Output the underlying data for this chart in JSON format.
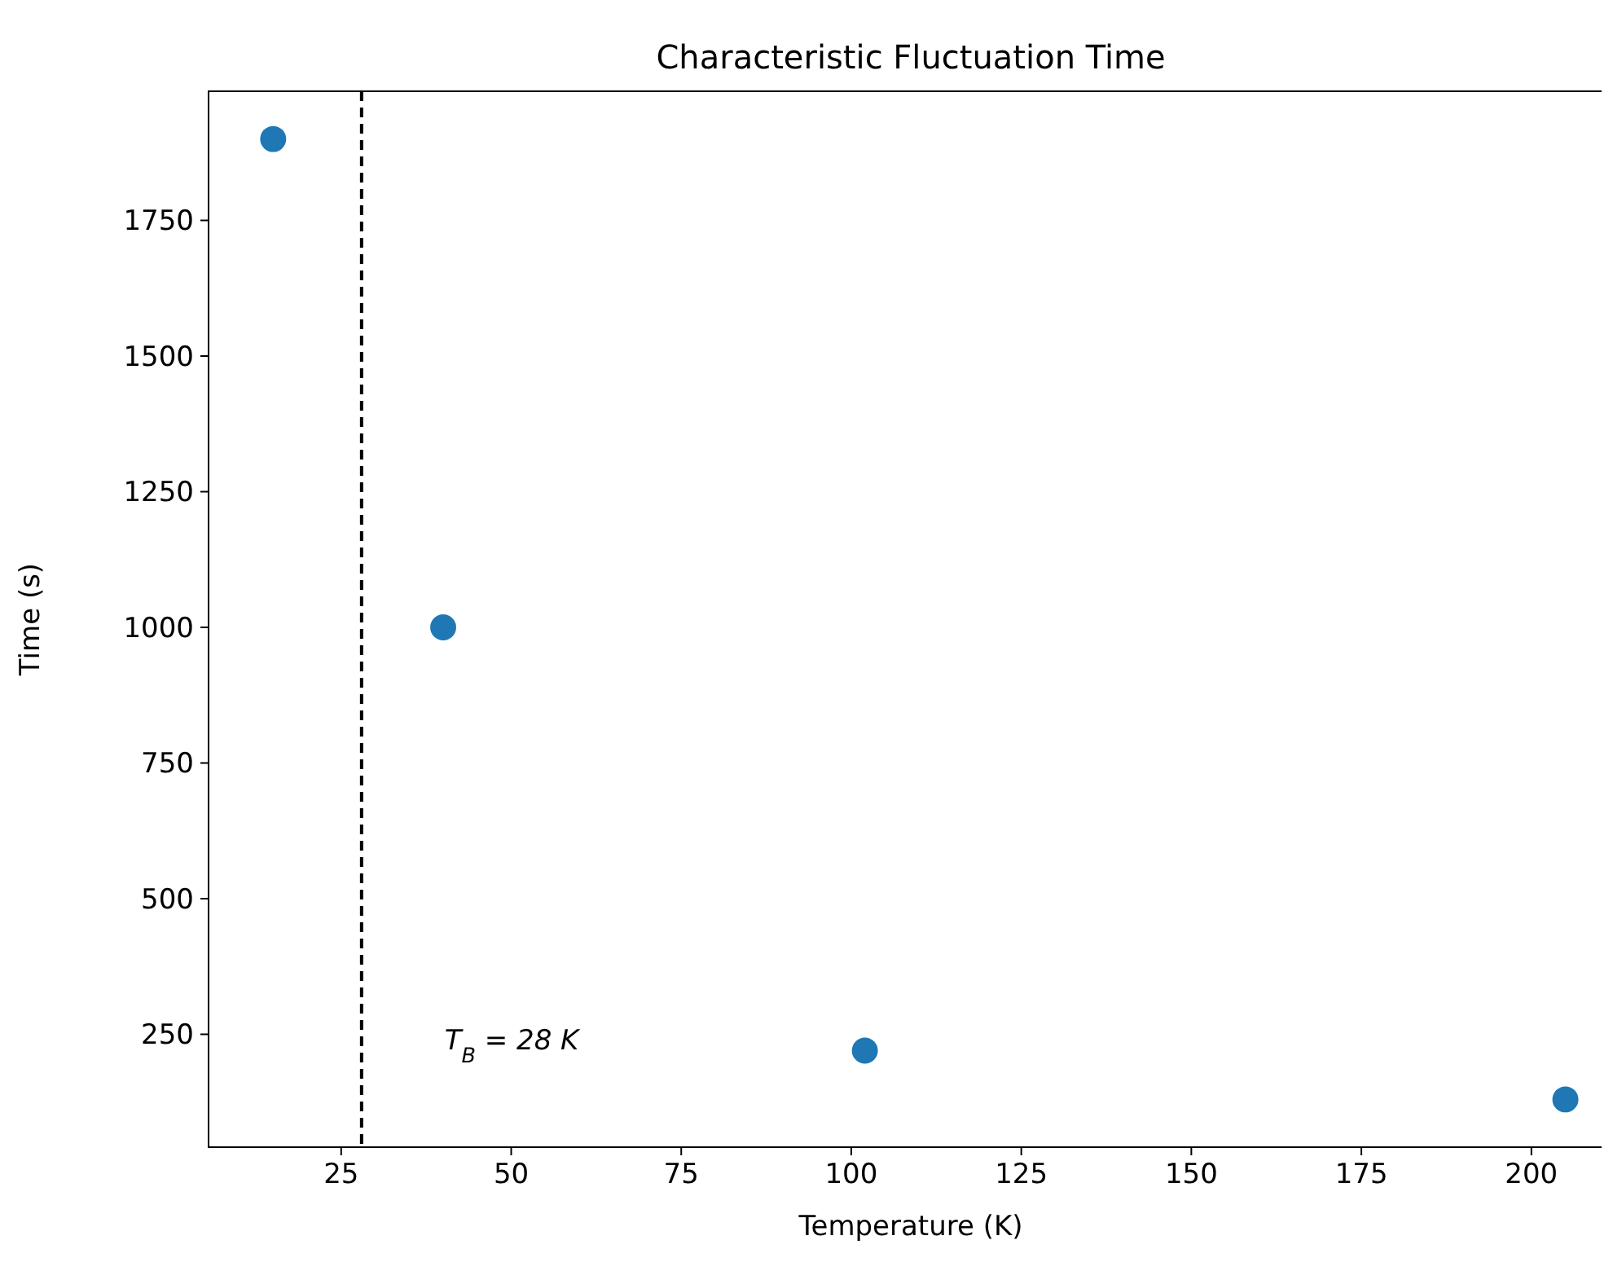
{
  "chart_data": {
    "type": "scatter",
    "title": "Characteristic Fluctuation Time",
    "xlabel": "Temperature (K)",
    "ylabel": "Time (s)",
    "x": [
      15,
      40,
      102,
      205
    ],
    "series": [
      {
        "color": "#1f77b4",
        "values": [
          1900,
          1000,
          220,
          130
        ]
      }
    ],
    "marker": "circle",
    "xlim": [
      5.5,
      212
    ],
    "xticks": [
      25,
      50,
      75,
      100,
      125,
      150,
      175,
      200
    ],
    "ylim": [
      42,
      1988
    ],
    "yticks": [
      250,
      500,
      750,
      1000,
      1250,
      1500,
      1750
    ],
    "ref_lines": [
      {
        "axis": "x",
        "value": 28,
        "color": "#000000",
        "line_style": "dashed"
      }
    ],
    "annotations": [
      "T$_{B}$ = 28 K"
    ],
    "grid": false
  }
}
